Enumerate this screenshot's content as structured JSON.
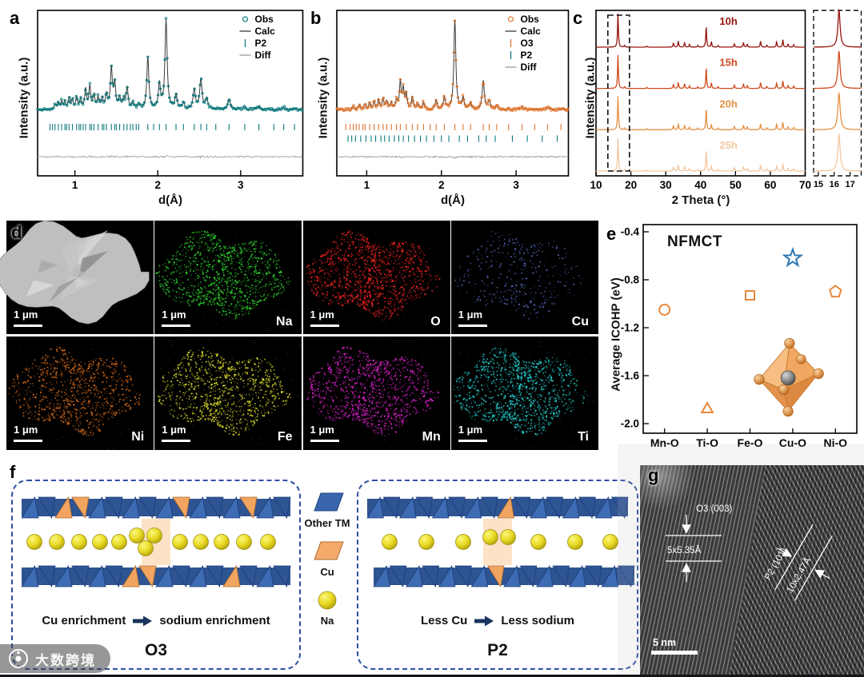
{
  "panel_labels": {
    "a": "a",
    "b": "b",
    "c": "c",
    "d": "d",
    "e": "e",
    "f": "f",
    "g": "g"
  },
  "watermark": {
    "text": "大数跨境"
  },
  "chart_data": [
    {
      "id": "a",
      "type": "line",
      "kind": "xrd-rietveld-pattern",
      "xlabel": "d(Å)",
      "ylabel": "Intensity (a.u.)",
      "xlim": [
        0.55,
        3.75
      ],
      "xticks": [
        1,
        2,
        3
      ],
      "color": "#0e7c80",
      "calc_color": "#3c3c3c",
      "diff_color": "#9a9a9a",
      "seed": 11,
      "legend": [
        {
          "label": "Obs",
          "marker": "circle",
          "color": "#0e7c80"
        },
        {
          "label": "Calc",
          "marker": "line",
          "color": "#3c3c3c"
        },
        {
          "label": "P2",
          "marker": "tick",
          "color": "#0e7c80"
        },
        {
          "label": "Diff",
          "marker": "line",
          "color": "#9a9a9a"
        }
      ],
      "peaks": [
        [
          0.76,
          0.05
        ],
        [
          0.8,
          0.07
        ],
        [
          0.84,
          0.09
        ],
        [
          0.88,
          0.08
        ],
        [
          0.93,
          0.12
        ],
        [
          0.97,
          0.1
        ],
        [
          1.02,
          0.13
        ],
        [
          1.07,
          0.11
        ],
        [
          1.13,
          0.22
        ],
        [
          1.18,
          0.25
        ],
        [
          1.23,
          0.15
        ],
        [
          1.28,
          0.13
        ],
        [
          1.33,
          0.11
        ],
        [
          1.38,
          0.16
        ],
        [
          1.44,
          0.45
        ],
        [
          1.48,
          0.28
        ],
        [
          1.54,
          0.12
        ],
        [
          1.59,
          0.1
        ],
        [
          1.63,
          0.24
        ],
        [
          1.7,
          0.07
        ],
        [
          1.77,
          0.05
        ],
        [
          1.88,
          0.58
        ],
        [
          2.02,
          0.28
        ],
        [
          2.1,
          1.0
        ],
        [
          2.22,
          0.16
        ],
        [
          2.31,
          0.07
        ],
        [
          2.44,
          0.22
        ],
        [
          2.52,
          0.34
        ],
        [
          2.59,
          0.12
        ],
        [
          2.86,
          0.12
        ],
        [
          3.05,
          0.03
        ],
        [
          3.22,
          0.04
        ],
        [
          3.52,
          0.03
        ]
      ],
      "bragg": [
        {
          "phase": "P2",
          "color": "#0e7c80",
          "positions": [
            0.7,
            0.73,
            0.76,
            0.8,
            0.84,
            0.88,
            0.9,
            0.93,
            0.97,
            1.02,
            1.05,
            1.07,
            1.1,
            1.13,
            1.18,
            1.2,
            1.23,
            1.28,
            1.33,
            1.35,
            1.38,
            1.44,
            1.48,
            1.5,
            1.54,
            1.59,
            1.63,
            1.67,
            1.7,
            1.74,
            1.77,
            1.88,
            1.95,
            2.02,
            2.1,
            2.22,
            2.31,
            2.44,
            2.52,
            2.59,
            2.7,
            2.86,
            3.05,
            3.22,
            3.4,
            3.52,
            3.65
          ]
        }
      ]
    },
    {
      "id": "b",
      "type": "line",
      "kind": "xrd-rietveld-pattern",
      "xlabel": "d(Å)",
      "ylabel": "Intensity (a.u.)",
      "xlim": [
        0.6,
        3.7
      ],
      "xticks": [
        1,
        2,
        3
      ],
      "color": "#e0762f",
      "calc_color": "#3c3c3c",
      "diff_color": "#9a9a9a",
      "seed": 23,
      "legend": [
        {
          "label": "Obs",
          "marker": "circle",
          "color": "#e0762f"
        },
        {
          "label": "Calc",
          "marker": "line",
          "color": "#3c3c3c"
        },
        {
          "label": "O3",
          "marker": "tick",
          "color": "#e0762f"
        },
        {
          "label": "P2",
          "marker": "tick",
          "color": "#0e7c80"
        },
        {
          "label": "Diff",
          "marker": "line",
          "color": "#9a9a9a"
        }
      ],
      "peaks": [
        [
          0.82,
          0.04
        ],
        [
          0.9,
          0.05
        ],
        [
          0.98,
          0.06
        ],
        [
          1.04,
          0.08
        ],
        [
          1.1,
          0.09
        ],
        [
          1.16,
          0.11
        ],
        [
          1.22,
          0.12
        ],
        [
          1.27,
          0.09
        ],
        [
          1.33,
          0.07
        ],
        [
          1.4,
          0.1
        ],
        [
          1.45,
          0.3
        ],
        [
          1.49,
          0.22
        ],
        [
          1.53,
          0.16
        ],
        [
          1.61,
          0.13
        ],
        [
          1.68,
          0.06
        ],
        [
          1.76,
          0.08
        ],
        [
          1.93,
          0.1
        ],
        [
          2.04,
          0.14
        ],
        [
          2.18,
          1.0
        ],
        [
          2.29,
          0.13
        ],
        [
          2.39,
          0.07
        ],
        [
          2.56,
          0.32
        ],
        [
          2.64,
          0.1
        ],
        [
          2.74,
          0.05
        ],
        [
          3.08,
          0.03
        ],
        [
          3.42,
          0.03
        ]
      ],
      "bragg": [
        {
          "phase": "O3",
          "color": "#e0762f",
          "positions": [
            0.72,
            0.78,
            0.82,
            0.86,
            0.9,
            0.95,
            0.98,
            1.04,
            1.1,
            1.16,
            1.22,
            1.27,
            1.33,
            1.4,
            1.45,
            1.53,
            1.61,
            1.68,
            1.76,
            1.85,
            1.93,
            2.04,
            2.18,
            2.29,
            2.39,
            2.56,
            2.64,
            2.74,
            2.9,
            3.08,
            3.25,
            3.42,
            3.6
          ]
        },
        {
          "phase": "P2",
          "color": "#0e7c80",
          "positions": [
            0.75,
            0.8,
            0.85,
            0.92,
            0.99,
            1.06,
            1.12,
            1.19,
            1.24,
            1.3,
            1.37,
            1.43,
            1.49,
            1.56,
            1.64,
            1.72,
            1.8,
            1.9,
            2.0,
            2.1,
            2.24,
            2.35,
            2.5,
            2.6,
            2.72,
            2.95,
            3.15,
            3.35,
            3.55
          ]
        }
      ]
    },
    {
      "id": "c",
      "type": "line",
      "kind": "xrd-time-series",
      "xlabel": "2 Theta (°)",
      "ylabel": "Intensity (a.u.)",
      "xlim": [
        10,
        70
      ],
      "xticks": [
        10,
        20,
        30,
        40,
        50,
        60,
        70
      ],
      "series": [
        {
          "name": "10h",
          "color": "#96150f"
        },
        {
          "name": "15h",
          "color": "#cf4a1f"
        },
        {
          "name": "20h",
          "color": "#e59043"
        },
        {
          "name": "25h",
          "color": "#f3c8a2"
        }
      ],
      "peaks": [
        [
          16.3,
          1.0
        ],
        [
          18.2,
          0.05
        ],
        [
          24.6,
          0.03
        ],
        [
          32.2,
          0.12
        ],
        [
          33.6,
          0.18
        ],
        [
          35.4,
          0.14
        ],
        [
          36.8,
          0.08
        ],
        [
          39.2,
          0.05
        ],
        [
          41.6,
          0.62
        ],
        [
          43.1,
          0.16
        ],
        [
          45.0,
          0.05
        ],
        [
          49.7,
          0.1
        ],
        [
          52.3,
          0.14
        ],
        [
          53.4,
          0.09
        ],
        [
          57.2,
          0.18
        ],
        [
          59.0,
          0.06
        ],
        [
          61.8,
          0.16
        ],
        [
          63.6,
          0.22
        ],
        [
          65.1,
          0.09
        ],
        [
          66.7,
          0.07
        ]
      ],
      "highlight_box": [
        13.4,
        19.6
      ],
      "inset": {
        "xlim": [
          14.7,
          17.7
        ],
        "xticks": [
          15,
          16,
          17
        ]
      }
    },
    {
      "id": "e",
      "type": "scatter",
      "title": "NFMCT",
      "ylabel": "Average ICOHP (eV)",
      "ylim": [
        -2.0,
        -0.4
      ],
      "yticks": [
        -0.4,
        -0.8,
        -1.2,
        -1.6,
        -2.0
      ],
      "categories": [
        "Mn-O",
        "Ti-O",
        "Fe-O",
        "Cu-O",
        "Ni-O"
      ],
      "points": [
        {
          "x": "Mn-O",
          "y": -1.05,
          "marker": "circle",
          "color": "#e8873a"
        },
        {
          "x": "Ti-O",
          "y": -1.88,
          "marker": "triangle",
          "color": "#e8873a"
        },
        {
          "x": "Fe-O",
          "y": -0.93,
          "marker": "square",
          "color": "#e8873a"
        },
        {
          "x": "Cu-O",
          "y": -0.62,
          "marker": "star",
          "color": "#2e78b5"
        },
        {
          "x": "Ni-O",
          "y": -0.9,
          "marker": "pentagon",
          "color": "#e8873a"
        }
      ]
    }
  ],
  "panel_d": {
    "scalebar": "1 μm",
    "cells": [
      {
        "label": "",
        "type": "sem"
      },
      {
        "label": "Na",
        "color": "#2ecc2e",
        "density": 0.9
      },
      {
        "label": "O",
        "color": "#ee2222",
        "density": 0.95
      },
      {
        "label": "Cu",
        "color": "#5565b5",
        "density": 0.3
      },
      {
        "label": "Ni",
        "color": "#cc661a",
        "density": 0.75
      },
      {
        "label": "Fe",
        "color": "#d6d62a",
        "density": 0.8
      },
      {
        "label": "Mn",
        "color": "#dd22cc",
        "density": 0.85
      },
      {
        "label": "Ti",
        "color": "#22cfcf",
        "density": 0.9
      }
    ]
  },
  "panel_f": {
    "legend": [
      {
        "label": "Other TM",
        "color": "#3a66ad"
      },
      {
        "label": "Cu",
        "color": "#f3aa6a"
      },
      {
        "label": "Na",
        "color": "#e8e24a"
      }
    ],
    "left": {
      "caption_left": "Cu enrichment",
      "caption_right": "sodium enrichment",
      "label": "O3"
    },
    "right": {
      "caption_left": "Less Cu",
      "caption_right": "Less sodium",
      "label": "P2"
    }
  },
  "panel_g": {
    "annotations": {
      "o3": "O3 (003)",
      "o3_d": "5x5.35Å",
      "p2": "P2 (101)",
      "p2_d": "10x2.47Å"
    },
    "scalebar": "5 nm"
  }
}
